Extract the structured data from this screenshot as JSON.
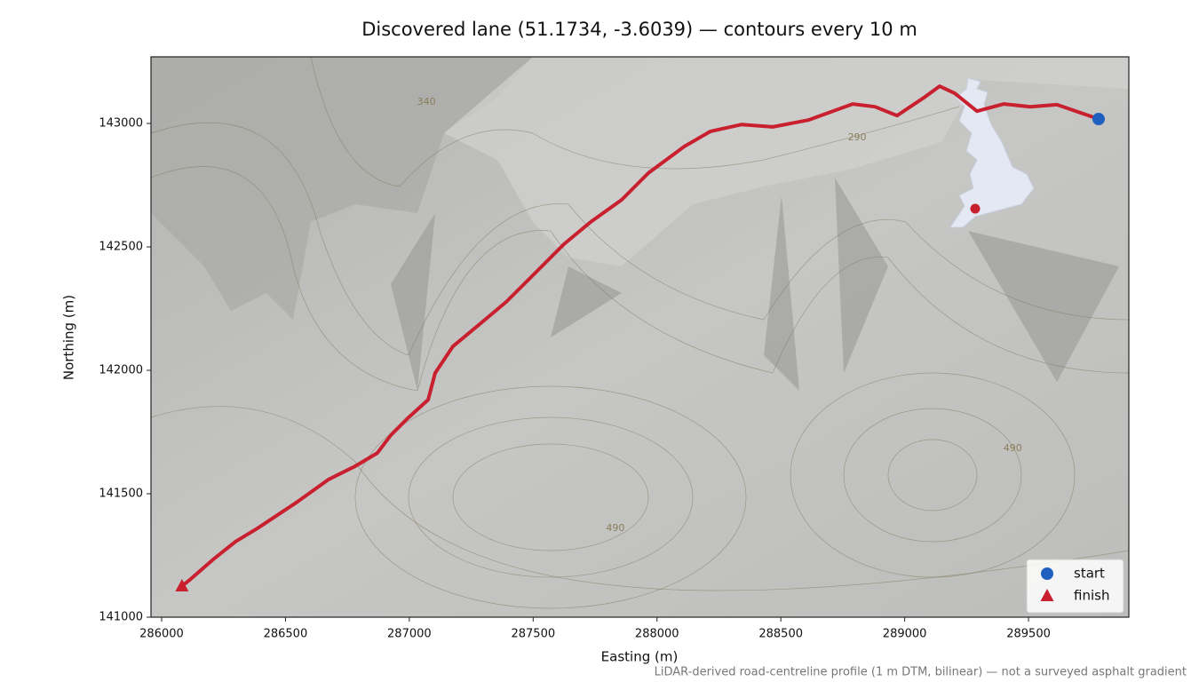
{
  "chart_data": {
    "type": "route-map",
    "title": "Discovered lane (51.1734, -3.6039) — contours every 10 m",
    "xlabel": "Easting (m)",
    "ylabel": "Northing (m)",
    "footnote": "LiDAR-derived road-centreline profile (1 m DTM, bilinear) — not a surveyed asphalt gradient",
    "xlim": [
      285957,
      289905
    ],
    "ylim": [
      141000,
      143270
    ],
    "xticks": [
      286000,
      286500,
      287000,
      287500,
      288000,
      288500,
      289000,
      289500
    ],
    "yticks": [
      141000,
      141500,
      142000,
      142500,
      143000
    ],
    "legend": "lower right",
    "route": {
      "color": "#c8202f",
      "x": [
        289783,
        289615,
        289507,
        289400,
        289292,
        289202,
        289141,
        289077,
        288969,
        288880,
        288790,
        288611,
        288467,
        288342,
        288216,
        288109,
        287965,
        287858,
        287732,
        287624,
        287499,
        287391,
        287284,
        287176,
        287104,
        287076,
        286997,
        286925,
        286871,
        286782,
        286674,
        286549,
        286387,
        286298,
        286208,
        286118,
        286082
      ],
      "y": [
        143018,
        143076,
        143068,
        143079,
        143050,
        143122,
        143151,
        143104,
        143032,
        143068,
        143079,
        143014,
        142986,
        142996,
        142968,
        142906,
        142799,
        142691,
        142601,
        142511,
        142385,
        142277,
        142187,
        142097,
        141989,
        141881,
        141809,
        141737,
        141665,
        141612,
        141558,
        141468,
        141360,
        141306,
        141234,
        141155,
        141126
      ]
    },
    "series": [
      {
        "name": "start",
        "color": "#1f5fbf",
        "marker": "circle",
        "x": [
          289783
        ],
        "y": [
          143018
        ]
      },
      {
        "name": "finish",
        "color": "#c8202f",
        "marker": "triangle",
        "x": [
          286082
        ],
        "y": [
          141126
        ]
      }
    ],
    "annotations": [
      {
        "text": "340",
        "x": 287069,
        "y": 143086
      },
      {
        "text": "290",
        "x": 288808,
        "y": 142942
      },
      {
        "text": "490",
        "x": 287832,
        "y": 141360
      },
      {
        "text": "490",
        "x": 289436,
        "y": 141683
      }
    ]
  }
}
